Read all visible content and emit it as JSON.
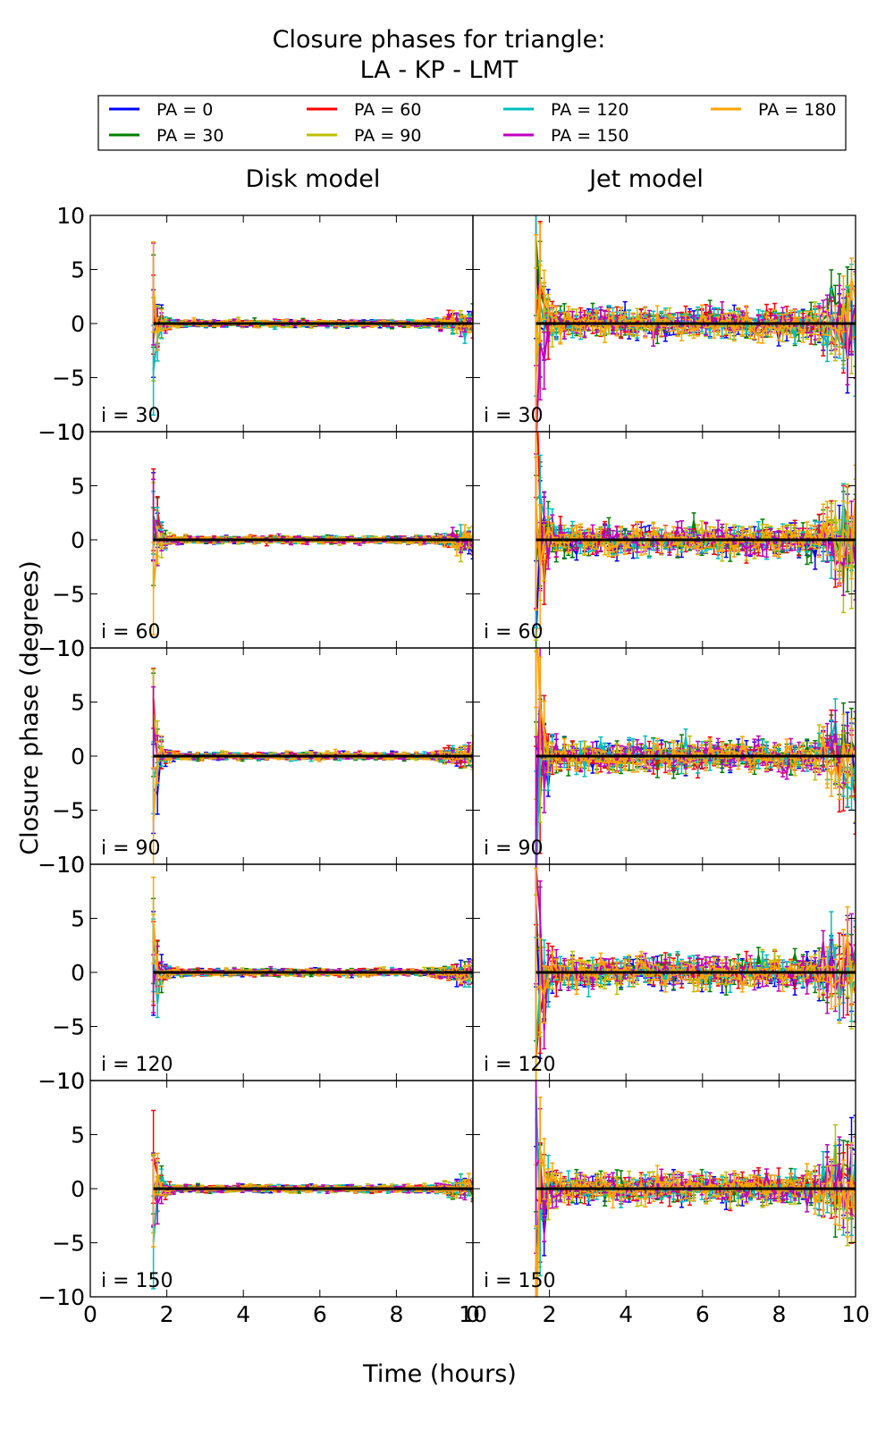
{
  "figure": {
    "title_line1": "Closure phases for triangle:",
    "title_line2": "LA - KP - LMT",
    "xlabel": "Time (hours)",
    "ylabel": "Closure phase (degrees)",
    "col_titles": [
      "Disk model",
      "Jet model"
    ]
  },
  "legend": [
    {
      "label": "PA = 0",
      "color": "#0000ff"
    },
    {
      "label": "PA = 60",
      "color": "#ff0000"
    },
    {
      "label": "PA = 120",
      "color": "#00bfbf"
    },
    {
      "label": "PA = 180",
      "color": "#ffa500"
    },
    {
      "label": "PA = 30",
      "color": "#008000"
    },
    {
      "label": "PA = 90",
      "color": "#bfbf00"
    },
    {
      "label": "PA = 150",
      "color": "#bf00bf"
    }
  ],
  "chart_data": {
    "type": "line",
    "x_range": [
      0,
      10
    ],
    "ylim": [
      -10,
      10
    ],
    "x_ticks": [
      0,
      2,
      4,
      6,
      8,
      10
    ],
    "y_ticks": [
      10,
      5,
      0,
      -5,
      -10
    ],
    "x_tick_labels": [
      "0",
      "2",
      "4",
      "6",
      "8",
      "10"
    ],
    "y_tick_labels": [
      "10",
      "5",
      "0",
      "−5",
      "−10"
    ],
    "t_start": 1.65,
    "t_end": 10,
    "columns": [
      {
        "name": "Disk model",
        "noise_scale": 0.3
      },
      {
        "name": "Jet model",
        "noise_scale": 1.3
      }
    ],
    "rows": [
      {
        "label": "i = 30"
      },
      {
        "label": "i = 60"
      },
      {
        "label": "i = 90"
      },
      {
        "label": "i = 120"
      },
      {
        "label": "i = 150"
      }
    ],
    "series": [
      {
        "name": "PA = 0",
        "color": "#0000ff"
      },
      {
        "name": "PA = 30",
        "color": "#008000"
      },
      {
        "name": "PA = 60",
        "color": "#ff0000"
      },
      {
        "name": "PA = 90",
        "color": "#bfbf00"
      },
      {
        "name": "PA = 120",
        "color": "#00bfbf"
      },
      {
        "name": "PA = 150",
        "color": "#bf00bf"
      },
      {
        "name": "PA = 180",
        "color": "#ffa500"
      }
    ],
    "model_line": {
      "color": "#000000",
      "value": 0
    }
  }
}
